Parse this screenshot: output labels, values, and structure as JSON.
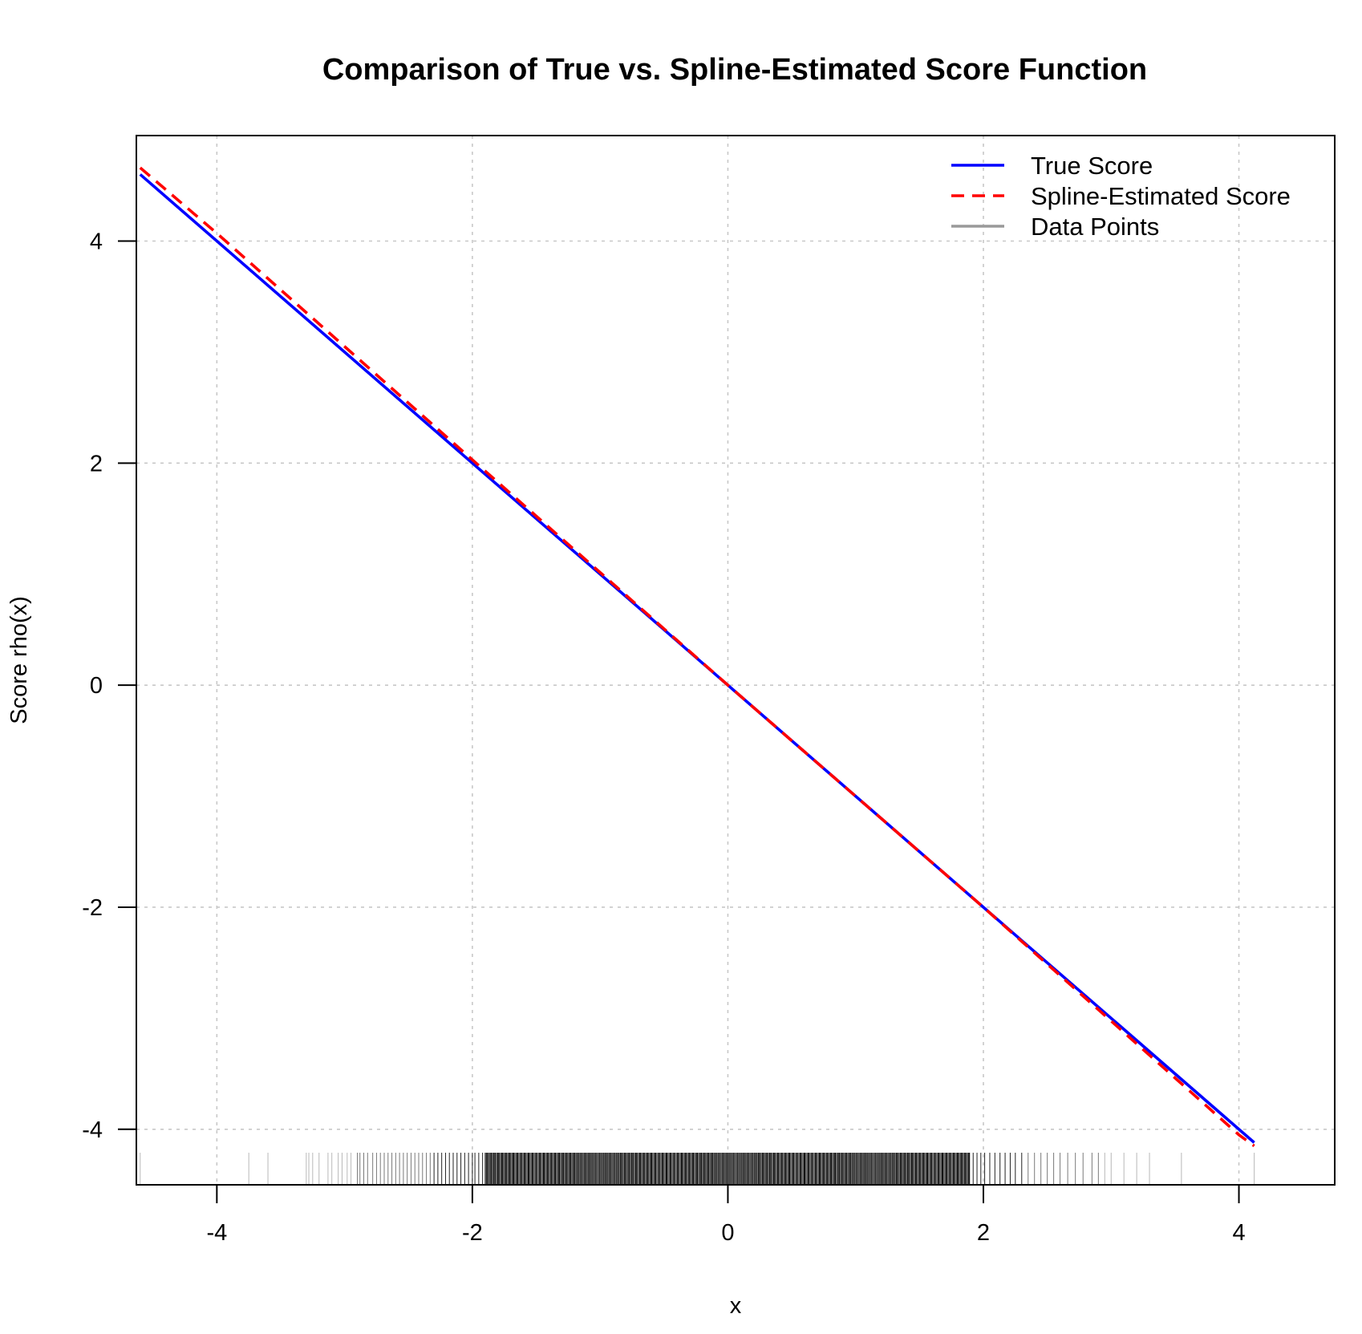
{
  "chart_data": {
    "type": "line",
    "title": "Comparison of True vs. Spline-Estimated Score Function",
    "xlabel": "x",
    "ylabel": "Score rho(x)",
    "xlim": [
      -4.63,
      4.75
    ],
    "ylim": [
      -4.5,
      4.95
    ],
    "xticks": [
      -4,
      -2,
      0,
      2,
      4
    ],
    "yticks": [
      -4,
      -2,
      0,
      2,
      4
    ],
    "grid": true,
    "legend_position": "top-right",
    "series": [
      {
        "name": "True Score",
        "color": "#0000ff",
        "style": "solid",
        "x": [
          -4.6,
          4.12
        ],
        "y": [
          4.6,
          -4.12
        ]
      },
      {
        "name": "Spline-Estimated Score",
        "color": "#ff0000",
        "style": "dashed",
        "x": [
          -4.6,
          -4.0,
          -2.0,
          0.0,
          2.0,
          4.0,
          4.12
        ],
        "y": [
          4.66,
          4.07,
          2.03,
          0.0,
          -2.0,
          -4.05,
          -4.15
        ]
      },
      {
        "name": "Data Points",
        "color": "#999999",
        "style": "rug",
        "x": [
          -4.6,
          -3.75,
          -3.6,
          -3.3,
          -3.28,
          -3.25,
          -3.2,
          -3.13,
          -3.1,
          -3.05,
          -3.02,
          -2.98,
          -2.95,
          -2.9,
          -2.88,
          -2.85,
          -2.82,
          -2.78,
          -2.75,
          -2.72,
          -2.69,
          -2.66,
          -2.63,
          -2.6,
          -2.57,
          -2.54,
          -2.51,
          -2.48,
          -2.45,
          -2.42,
          -2.39,
          -2.36,
          -2.33,
          -2.3,
          -2.27,
          -2.24,
          -2.21,
          -2.18,
          -2.15,
          -2.12,
          -2.09,
          -2.06,
          -2.03,
          -2.0,
          -1.98,
          -1.95,
          -1.92,
          -1.89,
          -1.86,
          -1.83,
          -1.8,
          -1.77,
          -1.74,
          -1.71,
          -1.68,
          -1.65,
          -1.62,
          -1.59,
          -1.56,
          -1.53,
          -1.5,
          -1.47,
          -1.44,
          -1.41,
          -1.38,
          -1.35,
          -1.32,
          -1.29,
          -1.26,
          -1.23,
          -1.2,
          -1.17,
          -1.14,
          -1.11,
          -1.08,
          -1.05,
          -1.02,
          -0.99,
          -0.96,
          -0.93,
          -0.9,
          -0.87,
          -0.84,
          -0.81,
          -0.78,
          -0.75,
          -0.72,
          -0.69,
          -0.66,
          -0.63,
          -0.6,
          -0.57,
          -0.54,
          -0.51,
          -0.48,
          -0.45,
          -0.42,
          -0.39,
          -0.36,
          -0.33,
          -0.3,
          -0.27,
          -0.24,
          -0.21,
          -0.18,
          -0.15,
          -0.12,
          -0.09,
          -0.06,
          -0.03,
          0.0,
          0.03,
          0.06,
          0.09,
          0.12,
          0.15,
          0.18,
          0.21,
          0.24,
          0.27,
          0.3,
          0.33,
          0.36,
          0.39,
          0.42,
          0.45,
          0.48,
          0.51,
          0.54,
          0.57,
          0.6,
          0.63,
          0.66,
          0.69,
          0.72,
          0.75,
          0.78,
          0.81,
          0.84,
          0.87,
          0.9,
          0.93,
          0.96,
          0.99,
          1.02,
          1.05,
          1.08,
          1.11,
          1.14,
          1.17,
          1.2,
          1.23,
          1.26,
          1.29,
          1.32,
          1.35,
          1.38,
          1.41,
          1.44,
          1.47,
          1.5,
          1.53,
          1.56,
          1.59,
          1.62,
          1.65,
          1.68,
          1.71,
          1.74,
          1.77,
          1.8,
          1.83,
          1.86,
          1.89,
          1.92,
          1.95,
          1.98,
          2.01,
          2.05,
          2.09,
          2.13,
          2.17,
          2.21,
          2.25,
          2.3,
          2.35,
          2.4,
          2.45,
          2.5,
          2.55,
          2.6,
          2.66,
          2.72,
          2.78,
          2.85,
          2.9,
          2.95,
          3.0,
          3.1,
          3.2,
          3.3,
          3.55,
          4.12
        ]
      }
    ]
  }
}
